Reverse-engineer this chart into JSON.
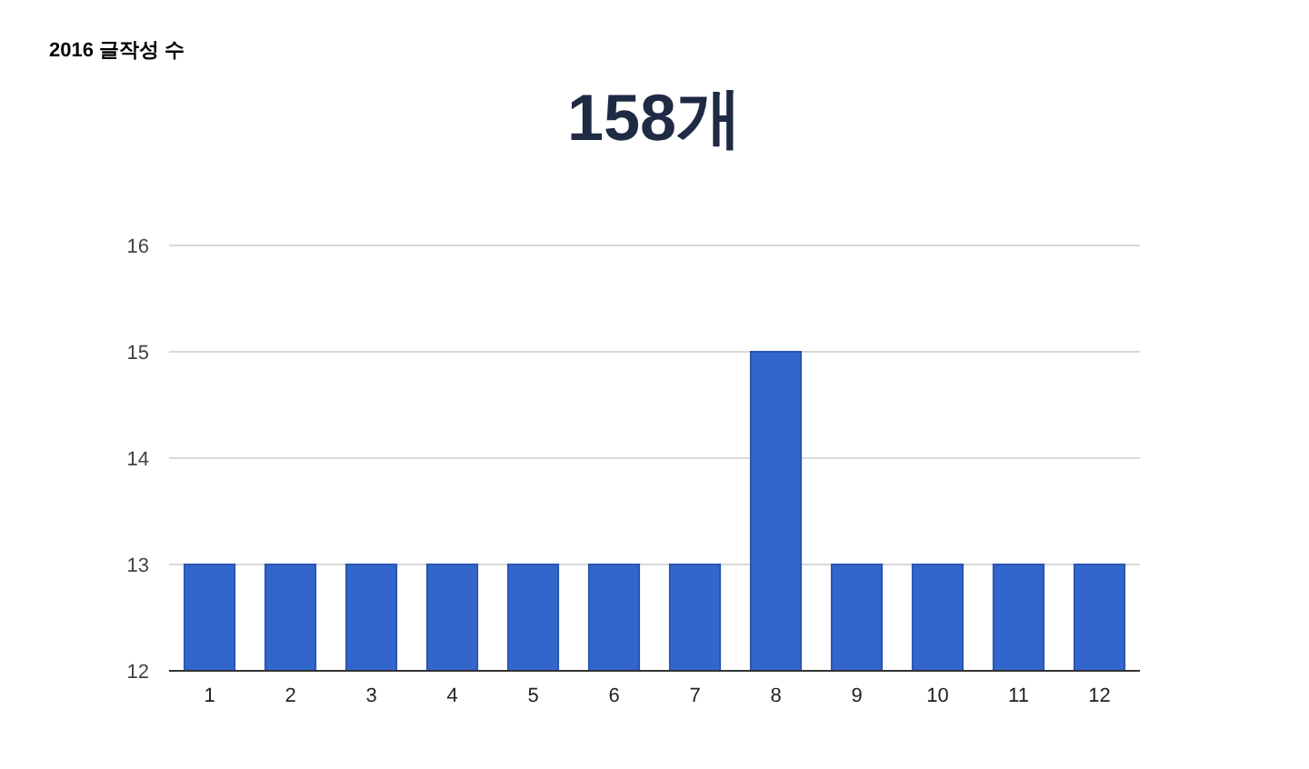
{
  "chart_data": {
    "type": "bar",
    "title": "2016 글작성 수",
    "subtitle": "158개",
    "categories": [
      "1",
      "2",
      "3",
      "4",
      "5",
      "6",
      "7",
      "8",
      "9",
      "10",
      "11",
      "12"
    ],
    "values": [
      13,
      13,
      13,
      13,
      13,
      13,
      13,
      15,
      13,
      13,
      13,
      13
    ],
    "color": "#3366cc",
    "ylim": [
      12,
      16
    ],
    "yticks": [
      12,
      13,
      14,
      15,
      16
    ],
    "grid": "y"
  }
}
